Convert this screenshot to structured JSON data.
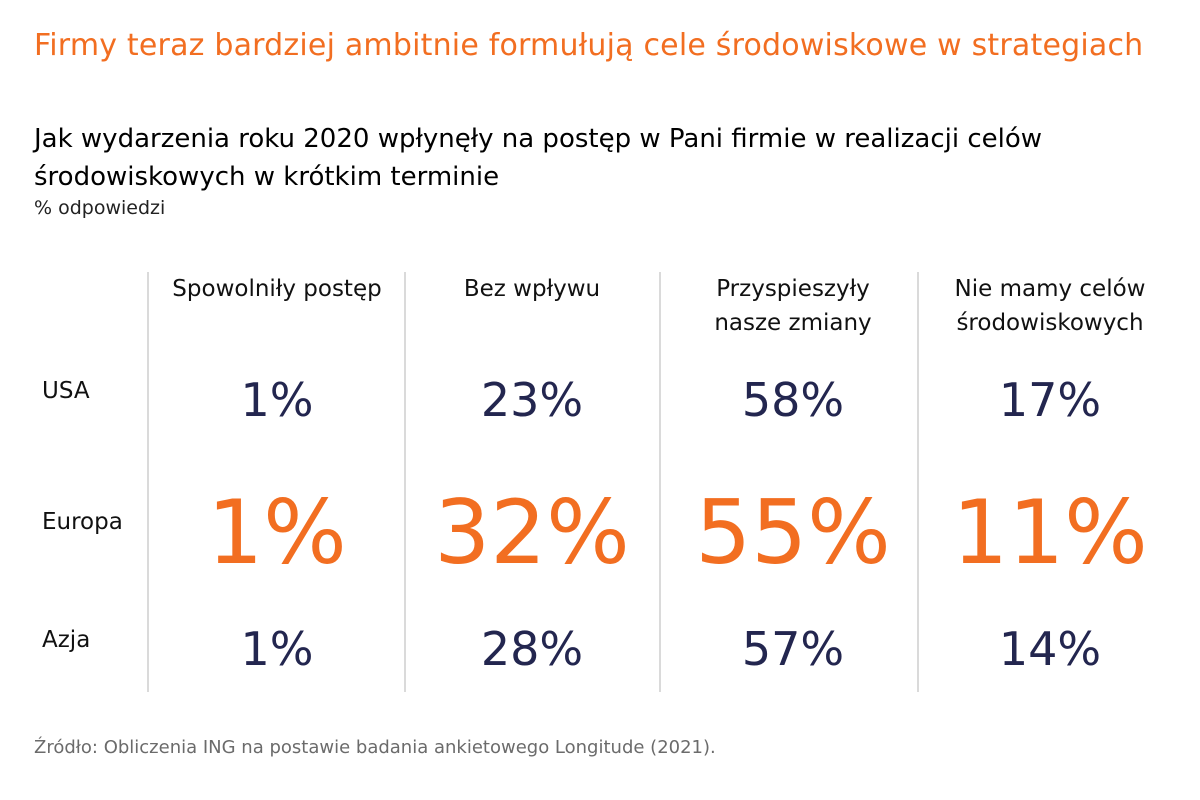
{
  "headline": "Firmy teraz bardziej ambitnie formułują cele środowiskowe w strategiach",
  "question": "Jak wydarzenia roku 2020 wpłynęły na postęp w Pani firmie w realizacji celów środowiskowych w krótkim terminie",
  "unit_label": "% odpowiedzi",
  "source": "Źródło: Obliczenia ING na postawie badania ankietowego Longitude (2021).",
  "colors": {
    "accent": "#f26e21",
    "navy": "#23264f",
    "divider": "#b5b5b5"
  },
  "chart_data": {
    "type": "table",
    "columns": [
      {
        "lines": [
          "Spowolniły postęp"
        ]
      },
      {
        "lines": [
          "Bez wpływu"
        ]
      },
      {
        "lines": [
          "Przyspieszyły",
          "nasze zmiany"
        ]
      },
      {
        "lines": [
          "Nie mamy celów",
          "środowiskowych"
        ]
      }
    ],
    "rows": [
      {
        "label": "USA",
        "highlight": false,
        "values": [
          1,
          23,
          58,
          17
        ],
        "display": [
          "1%",
          "23%",
          "58%",
          "17%"
        ]
      },
      {
        "label": "Europa",
        "highlight": true,
        "values": [
          1,
          32,
          55,
          11
        ],
        "display": [
          "1%",
          "32%",
          "55%",
          "11%"
        ]
      },
      {
        "label": "Azja",
        "highlight": false,
        "values": [
          1,
          28,
          57,
          14
        ],
        "display": [
          "1%",
          "28%",
          "57%",
          "14%"
        ]
      }
    ]
  }
}
